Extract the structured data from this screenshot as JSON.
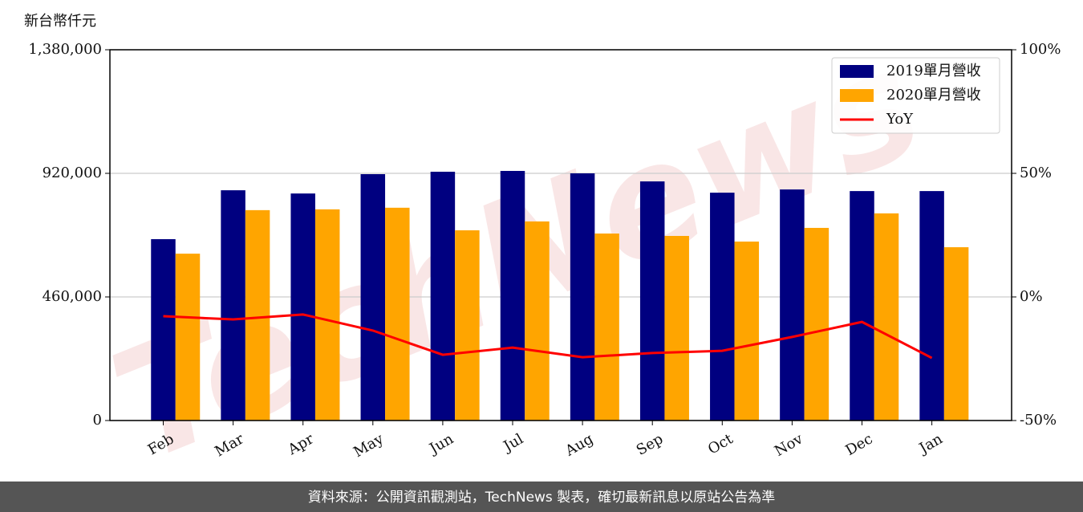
{
  "chart_data": {
    "type": "bar",
    "y_axis_label": "新台幣仟元",
    "watermark": "TechNews",
    "categories": [
      "Feb",
      "Mar",
      "Apr",
      "May",
      "Jun",
      "Jul",
      "Aug",
      "Sep",
      "Oct",
      "Nov",
      "Dec",
      "Jan"
    ],
    "series": [
      {
        "name": "2019單月營收",
        "color": "#000080",
        "values": [
          675000,
          857000,
          845000,
          917000,
          926000,
          929000,
          920000,
          890000,
          848000,
          860000,
          854000,
          854000
        ]
      },
      {
        "name": "2020單月營收",
        "color": "#ffa500",
        "values": [
          621000,
          783000,
          786000,
          792000,
          708000,
          741000,
          696000,
          687000,
          666000,
          717000,
          771000,
          645000
        ]
      },
      {
        "name": "YoY",
        "type": "line",
        "axis": "y2",
        "color": "#ff0000",
        "values": [
          -7.8,
          -9.1,
          -7.1,
          -13.6,
          -23.4,
          -20.5,
          -24.4,
          -22.7,
          -21.8,
          -16.2,
          -10.1,
          -24.7
        ]
      }
    ],
    "ylim": [
      0,
      1380000
    ],
    "yticks": [
      {
        "value": 0,
        "label": "0"
      },
      {
        "value": 460000,
        "label": "460,000"
      },
      {
        "value": 920000,
        "label": "920,000"
      },
      {
        "value": 1380000,
        "label": "1,380,000"
      }
    ],
    "y2lim": [
      -50,
      100
    ],
    "y2ticks": [
      {
        "value": -50,
        "label": "-50%"
      },
      {
        "value": 0,
        "label": "0%"
      },
      {
        "value": 50,
        "label": "50%"
      },
      {
        "value": 100,
        "label": "100%"
      }
    ],
    "grid": true,
    "legend": "upper right",
    "footer": "資料來源：公開資訊觀測站，TechNews 製表，確切最新訊息以原站公告為準"
  }
}
